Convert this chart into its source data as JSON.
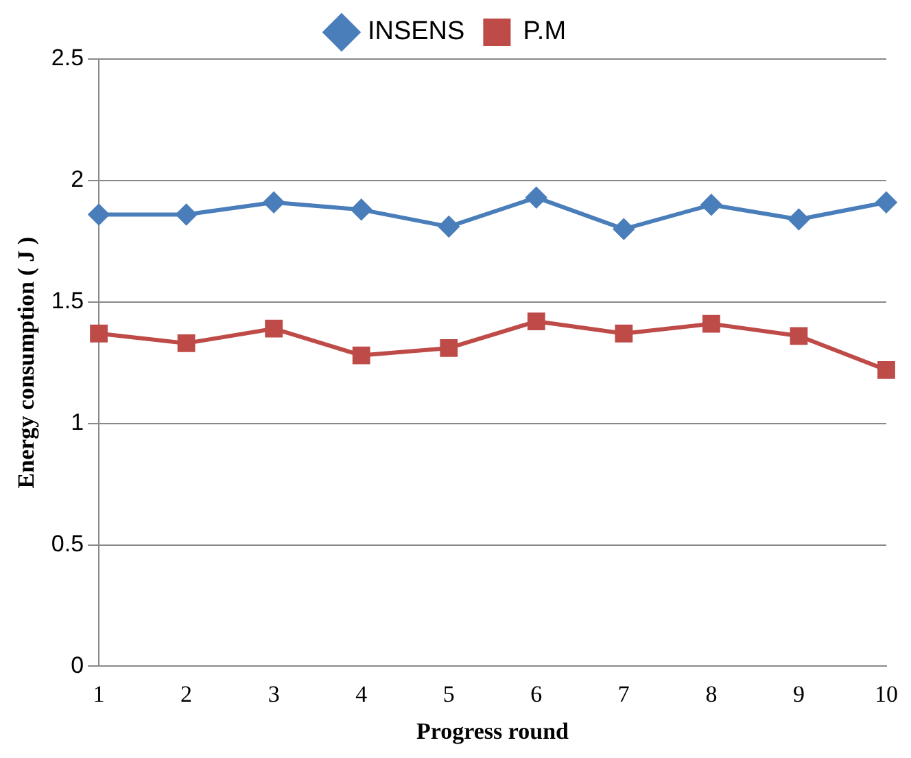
{
  "chart_data": {
    "type": "line",
    "xlabel": "Progress round",
    "ylabel": "Energy consumption ( J )",
    "categories": [
      "1",
      "2",
      "3",
      "4",
      "5",
      "6",
      "7",
      "8",
      "9",
      "10"
    ],
    "series": [
      {
        "name": "INSENS",
        "color": "#4a7ebb",
        "marker": "diamond",
        "values": [
          1.86,
          1.86,
          1.91,
          1.88,
          1.81,
          1.93,
          1.8,
          1.9,
          1.84,
          1.91
        ]
      },
      {
        "name": "P.M",
        "color": "#be4b48",
        "marker": "square",
        "values": [
          1.37,
          1.33,
          1.39,
          1.28,
          1.31,
          1.42,
          1.37,
          1.41,
          1.36,
          1.22
        ]
      }
    ],
    "ylim": [
      0,
      2.5
    ],
    "yticks": [
      0,
      0.5,
      1,
      1.5,
      2,
      2.5
    ],
    "grid": "y",
    "legend": "top"
  }
}
